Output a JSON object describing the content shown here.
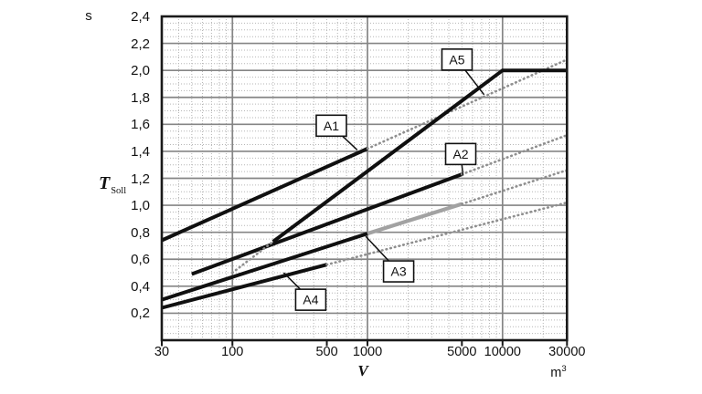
{
  "axes": {
    "y_unit": "s",
    "y_label": "T",
    "y_label_sub": "Soll",
    "x_label": "V",
    "x_unit": "m",
    "x_unit_sup": "3",
    "x_scale": "log",
    "x_min": 30,
    "x_max": 30000,
    "y_min": 0,
    "y_max": 2.4,
    "x_tick_values": [
      30,
      100,
      500,
      1000,
      5000,
      10000,
      30000
    ],
    "x_tick_labels": [
      "30",
      "100",
      "500",
      "1000",
      "5000",
      "10000",
      "30000"
    ],
    "y_tick_values": [
      0.2,
      0.4,
      0.6,
      0.8,
      1.0,
      1.2,
      1.4,
      1.6,
      1.8,
      2.0,
      2.2,
      2.4
    ],
    "y_tick_labels": [
      "0,2",
      "0,4",
      "0,6",
      "0,8",
      "1,0",
      "1,2",
      "1,4",
      "1,6",
      "1,8",
      "2,0",
      "2,2",
      "2,4"
    ],
    "x_major_grid": [
      100,
      1000,
      10000
    ],
    "y_major_step": 0.2,
    "y_minor_step": 0.05
  },
  "colors": {
    "curve": "#101010",
    "gray_segment": "#a2a2a2",
    "dotted": "#8f8f8f",
    "grid_minor": "#b6b6b6",
    "grid_major": "#858585",
    "border": "#1a1a1a",
    "leader": "#111111",
    "label_box_fill": "#ffffff",
    "background": "#ffffff"
  },
  "chart_data": {
    "type": "line",
    "title": "",
    "xlabel": "V (m3)",
    "ylabel": "T Soll (s)",
    "x_scale": "log",
    "xlim": [
      30,
      30000
    ],
    "ylim": [
      0,
      2.4
    ],
    "grid": true,
    "legend": "none",
    "series": [
      {
        "name": "A1",
        "style": "solid-black",
        "points": [
          [
            30,
            0.74
          ],
          [
            1000,
            1.42
          ]
        ]
      },
      {
        "name": "A1-extension",
        "style": "dotted-gray",
        "points": [
          [
            1000,
            1.42
          ],
          [
            30000,
            2.08
          ]
        ]
      },
      {
        "name": "A2",
        "style": "solid-black",
        "points": [
          [
            50,
            0.49
          ],
          [
            5000,
            1.23
          ]
        ]
      },
      {
        "name": "A2-extension",
        "style": "dotted-gray",
        "points": [
          [
            5000,
            1.23
          ],
          [
            30000,
            1.52
          ]
        ]
      },
      {
        "name": "A3",
        "style": "solid-black",
        "points": [
          [
            30,
            0.3
          ],
          [
            1000,
            0.79
          ]
        ]
      },
      {
        "name": "A3-gray-segment",
        "style": "solid-gray",
        "points": [
          [
            1000,
            0.79
          ],
          [
            5000,
            1.01
          ]
        ]
      },
      {
        "name": "A3-extension",
        "style": "dotted-gray",
        "points": [
          [
            5000,
            1.01
          ],
          [
            30000,
            1.26
          ]
        ]
      },
      {
        "name": "A4",
        "style": "solid-black",
        "points": [
          [
            30,
            0.24
          ],
          [
            500,
            0.56
          ]
        ]
      },
      {
        "name": "A4-extension",
        "style": "dotted-gray",
        "points": [
          [
            500,
            0.56
          ],
          [
            30000,
            1.02
          ]
        ]
      },
      {
        "name": "A5-extension-left",
        "style": "dotted-gray",
        "points": [
          [
            100,
            0.5
          ],
          [
            200,
            0.73
          ]
        ]
      },
      {
        "name": "A5",
        "style": "solid-black",
        "points": [
          [
            200,
            0.73
          ],
          [
            10000,
            2.0
          ],
          [
            30000,
            2.0
          ]
        ]
      }
    ],
    "annotations": [
      {
        "text": "A1",
        "box": [
          540,
          1.59
        ],
        "tip": [
          840,
          1.41
        ]
      },
      {
        "text": "A2",
        "box": [
          4900,
          1.38
        ],
        "tip": [
          5100,
          1.22
        ]
      },
      {
        "text": "A3",
        "box": [
          1700,
          0.51
        ],
        "tip": [
          970,
          0.77
        ]
      },
      {
        "text": "A4",
        "box": [
          380,
          0.3
        ],
        "tip": [
          240,
          0.5
        ]
      },
      {
        "text": "A5",
        "box": [
          4600,
          2.08
        ],
        "tip": [
          7300,
          1.82
        ]
      }
    ]
  }
}
